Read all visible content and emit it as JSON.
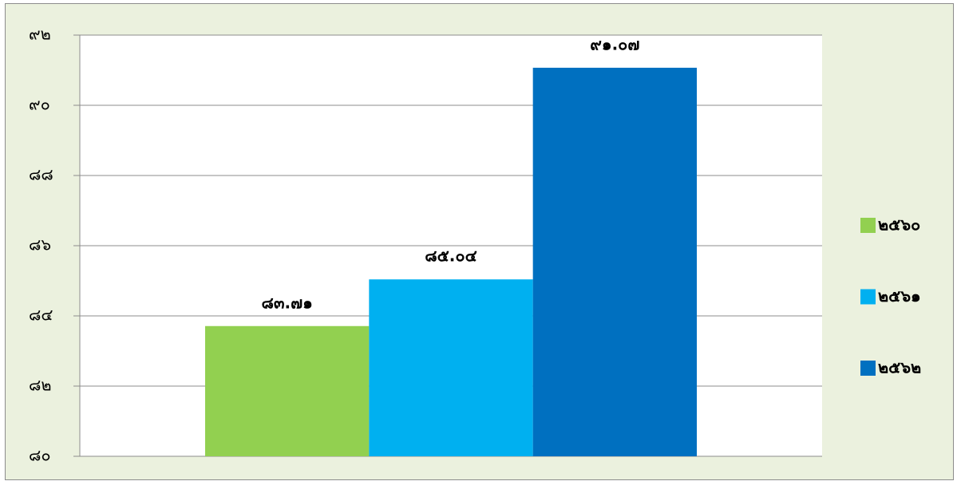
{
  "chart_data": {
    "type": "bar",
    "categories": [
      null
    ],
    "series": [
      {
        "name": "๒๕๖๐",
        "color": "#92d050",
        "values": [
          83.71
        ],
        "value_labels": [
          "๘๓.๗๑"
        ]
      },
      {
        "name": "๒๕๖๑",
        "color": "#00b0f0",
        "values": [
          85.04
        ],
        "value_labels": [
          "๘๕.๐๔"
        ]
      },
      {
        "name": "๒๕๖๒",
        "color": "#0070c0",
        "values": [
          91.07
        ],
        "value_labels": [
          "๙๑.๐๗"
        ]
      }
    ],
    "ylim": [
      80,
      92
    ],
    "yticks": [
      {
        "value": 80,
        "label": "๘๐"
      },
      {
        "value": 82,
        "label": "๘๒"
      },
      {
        "value": 84,
        "label": "๘๔"
      },
      {
        "value": 86,
        "label": "๘๖"
      },
      {
        "value": 88,
        "label": "๘๘"
      },
      {
        "value": 90,
        "label": "๙๐"
      },
      {
        "value": 92,
        "label": "๙๒"
      }
    ],
    "grid": true,
    "legend": "right"
  }
}
